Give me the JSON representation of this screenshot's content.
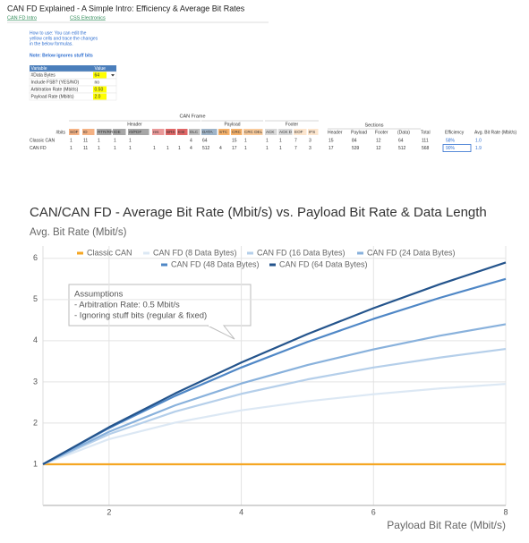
{
  "header": {
    "title": "CAN FD Explained - A Simple Intro: Efficiency & Average Bit Rates",
    "links": [
      "CAN FD Intro",
      "CSS Electronics"
    ]
  },
  "instructions": [
    "How to use: You can edit the",
    "yellow cells and trace the changes",
    "in the below formulas."
  ],
  "note": "Note: Below ignores stuff bits",
  "inputs": {
    "header": [
      "Variable",
      "Value"
    ],
    "rows": [
      [
        "#Data Bytes",
        "64"
      ],
      [
        "Include FSB? (YES/NO)",
        "no"
      ],
      [
        "Arbitration Rate (Mbit/s)",
        "0.50"
      ],
      [
        "Payload Rate (Mbit/s)",
        "2.0"
      ]
    ]
  },
  "frame": {
    "title": "CAN Frame",
    "groups": [
      "Header",
      "Payload",
      "Footer"
    ],
    "row_header": "#bits",
    "columns": [
      "SOF",
      "ID",
      "RTR/RRS",
      "IDE",
      "r0/FDF",
      "res",
      "BRS",
      "ESI",
      "DLC",
      "DATA",
      "STC",
      "CRC",
      "CRC DEL",
      "ACK",
      "ACK D",
      "EOF",
      "IFS"
    ],
    "rows": [
      {
        "label": "Classic CAN",
        "cells": [
          1,
          11,
          1,
          1,
          1,
          null,
          null,
          null,
          4,
          64,
          null,
          15,
          1,
          1,
          1,
          7,
          3
        ]
      },
      {
        "label": "CAN FD",
        "cells": [
          1,
          11,
          1,
          1,
          1,
          1,
          1,
          1,
          4,
          512,
          4,
          17,
          1,
          1,
          1,
          7,
          3
        ]
      }
    ]
  },
  "sections": {
    "title": "Sections",
    "columns": [
      "Header",
      "Payload",
      "Footer",
      "(Data)",
      "Total",
      "Efficiency",
      "Avg. Bit Rate (Mbit/s)"
    ],
    "rows": [
      [
        15,
        84,
        12,
        64,
        111,
        "58%",
        "1.0"
      ],
      [
        17,
        539,
        12,
        512,
        568,
        "90%",
        "1.9"
      ]
    ]
  },
  "chart_data": {
    "type": "line",
    "title": "CAN/CAN FD - Average Bit Rate (Mbit/s) vs. Payload Bit Rate & Data Length",
    "subtitle": "Avg. Bit Rate (Mbit/s)",
    "x_label": "Payload Bit Rate (Mbit/s)",
    "x": [
      1,
      2,
      3,
      4,
      5,
      6,
      7,
      8
    ],
    "xlim": [
      1,
      8
    ],
    "xticks": [
      2,
      4,
      6,
      8
    ],
    "ylim": [
      0,
      6.3
    ],
    "yticks": [
      1,
      2,
      3,
      4,
      5,
      6
    ],
    "grid": true,
    "series": [
      {
        "name": "Classic CAN",
        "color": "#f5a623",
        "values": [
          1,
          1,
          1,
          1,
          1,
          1,
          1,
          1
        ]
      },
      {
        "name": "CAN FD (8 Data Bytes)",
        "color": "#dce8f4",
        "values": [
          1,
          1.61,
          2.01,
          2.31,
          2.53,
          2.7,
          2.84,
          2.95
        ]
      },
      {
        "name": "CAN FD (16 Data Bytes)",
        "color": "#b5cfea",
        "values": [
          1,
          1.73,
          2.28,
          2.71,
          3.06,
          3.35,
          3.59,
          3.8
        ]
      },
      {
        "name": "CAN FD (24 Data Bytes)",
        "color": "#88b1dc",
        "values": [
          1,
          1.79,
          2.43,
          2.96,
          3.41,
          3.79,
          4.12,
          4.4
        ]
      },
      {
        "name": "CAN FD (48 Data Bytes)",
        "color": "#4f87c6",
        "values": [
          1,
          1.88,
          2.66,
          3.35,
          3.97,
          4.53,
          5.04,
          5.5
        ]
      },
      {
        "name": "CAN FD (64 Data Bytes)",
        "color": "#24548c",
        "values": [
          1,
          1.9,
          2.72,
          3.47,
          4.16,
          4.79,
          5.37,
          5.9
        ]
      }
    ],
    "annotations": [
      "Assumptions",
      "- Arbitration Rate: 0.5 Mbit/s",
      "- Ignoring stuff bits (regular & fixed)"
    ]
  }
}
